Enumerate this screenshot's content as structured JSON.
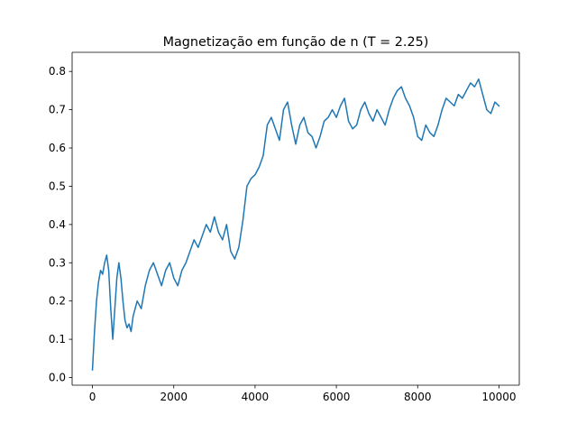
{
  "chart_data": {
    "type": "line",
    "title": "Magnetização em função de n (T = 2.25)",
    "xlabel": "",
    "ylabel": "",
    "xlim": [
      -500,
      10500
    ],
    "ylim": [
      -0.02,
      0.85
    ],
    "xticks": [
      0,
      2000,
      4000,
      6000,
      8000,
      10000
    ],
    "xtick_labels": [
      "0",
      "2000",
      "4000",
      "6000",
      "8000",
      "10000"
    ],
    "yticks": [
      0.0,
      0.1,
      0.2,
      0.3,
      0.4,
      0.5,
      0.6,
      0.7,
      0.8
    ],
    "ytick_labels": [
      "0.0",
      "0.1",
      "0.2",
      "0.3",
      "0.4",
      "0.5",
      "0.6",
      "0.7",
      "0.8"
    ],
    "grid": false,
    "line_color": "#1f77b4",
    "series": [
      {
        "x": [
          0,
          50,
          100,
          150,
          200,
          250,
          300,
          350,
          400,
          450,
          500,
          550,
          600,
          650,
          700,
          750,
          800,
          850,
          900,
          950,
          1000,
          1050,
          1100,
          1150,
          1200,
          1300,
          1400,
          1500,
          1600,
          1700,
          1800,
          1900,
          2000,
          2100,
          2200,
          2300,
          2400,
          2500,
          2600,
          2700,
          2800,
          2900,
          3000,
          3100,
          3200,
          3300,
          3400,
          3500,
          3600,
          3700,
          3800,
          3900,
          4000,
          4100,
          4200,
          4300,
          4400,
          4500,
          4600,
          4700,
          4800,
          4900,
          5000,
          5100,
          5200,
          5300,
          5400,
          5500,
          5600,
          5700,
          5800,
          5900,
          6000,
          6100,
          6200,
          6300,
          6400,
          6500,
          6600,
          6700,
          6800,
          6900,
          7000,
          7100,
          7200,
          7300,
          7400,
          7500,
          7600,
          7700,
          7800,
          7900,
          8000,
          8100,
          8200,
          8300,
          8400,
          8500,
          8600,
          8700,
          8800,
          8900,
          9000,
          9100,
          9200,
          9300,
          9400,
          9500,
          9600,
          9700,
          9800,
          9900,
          10000
        ],
        "y": [
          0.02,
          0.12,
          0.2,
          0.25,
          0.28,
          0.27,
          0.3,
          0.32,
          0.28,
          0.18,
          0.1,
          0.18,
          0.26,
          0.3,
          0.26,
          0.2,
          0.15,
          0.13,
          0.14,
          0.12,
          0.16,
          0.18,
          0.2,
          0.19,
          0.18,
          0.24,
          0.28,
          0.3,
          0.27,
          0.24,
          0.28,
          0.3,
          0.26,
          0.24,
          0.28,
          0.3,
          0.33,
          0.36,
          0.34,
          0.37,
          0.4,
          0.38,
          0.42,
          0.38,
          0.36,
          0.4,
          0.33,
          0.31,
          0.34,
          0.41,
          0.5,
          0.52,
          0.53,
          0.55,
          0.58,
          0.66,
          0.68,
          0.65,
          0.62,
          0.7,
          0.72,
          0.66,
          0.61,
          0.66,
          0.68,
          0.64,
          0.63,
          0.6,
          0.63,
          0.67,
          0.68,
          0.7,
          0.68,
          0.71,
          0.73,
          0.67,
          0.65,
          0.66,
          0.7,
          0.72,
          0.69,
          0.67,
          0.7,
          0.68,
          0.66,
          0.7,
          0.73,
          0.75,
          0.76,
          0.73,
          0.71,
          0.68,
          0.63,
          0.62,
          0.66,
          0.64,
          0.63,
          0.66,
          0.7,
          0.73,
          0.72,
          0.71,
          0.74,
          0.73,
          0.75,
          0.77,
          0.76,
          0.78,
          0.74,
          0.7,
          0.69,
          0.72,
          0.71
        ]
      }
    ]
  }
}
